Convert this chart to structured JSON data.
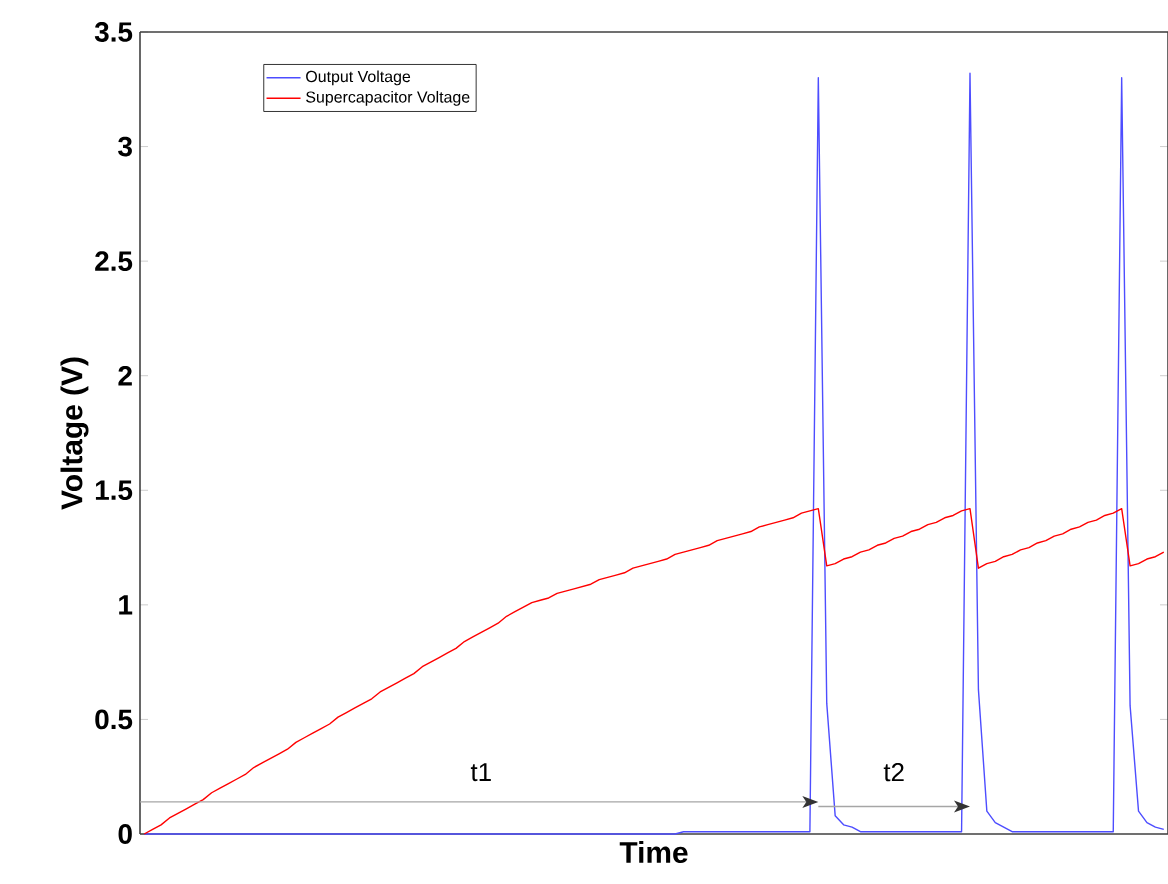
{
  "chart_data": {
    "type": "line",
    "xlabel": "Time",
    "ylabel": "Voltage (V)",
    "categories": [
      null,
      null,
      null,
      null,
      null,
      null,
      null,
      null,
      null,
      null,
      null,
      null,
      null,
      null,
      null,
      null,
      null,
      null,
      null,
      null,
      null,
      null,
      null,
      null,
      null,
      null,
      null,
      null,
      null,
      null,
      null,
      null,
      null,
      null,
      null,
      null,
      null,
      null,
      null,
      null,
      null,
      null,
      null,
      null,
      null,
      null,
      null,
      null,
      null,
      null,
      null,
      null,
      null,
      null,
      null,
      null,
      null,
      null,
      null,
      null,
      null,
      null,
      null,
      null,
      null,
      null,
      null,
      null,
      null,
      null,
      null,
      null,
      null,
      null,
      null,
      null,
      null,
      null,
      null,
      null,
      null,
      null,
      null,
      null,
      null,
      null,
      null,
      null,
      null,
      null,
      null,
      null,
      null,
      null,
      null,
      null,
      null,
      null,
      null,
      null,
      null,
      null,
      null,
      null,
      null,
      null,
      null,
      null,
      null,
      null,
      null,
      null,
      null,
      null,
      null,
      null,
      null,
      null,
      null,
      null,
      null,
      null
    ],
    "series": [
      {
        "name": "Output Voltage",
        "color": "#4d4dff",
        "values": [
          0,
          0,
          0,
          0,
          0,
          0,
          0,
          0,
          0,
          0,
          0,
          0,
          0,
          0,
          0,
          0,
          0,
          0,
          0,
          0,
          0,
          0,
          0,
          0,
          0,
          0,
          0,
          0,
          0,
          0,
          0,
          0,
          0,
          0,
          0,
          0,
          0,
          0,
          0,
          0,
          0,
          0,
          0,
          0,
          0,
          0,
          0,
          0,
          0,
          0,
          0,
          0,
          0,
          0,
          0,
          0,
          0,
          0,
          0,
          0,
          0,
          0,
          0,
          0,
          0.01,
          0.01,
          0.01,
          0.01,
          0.01,
          0.01,
          0.01,
          0.01,
          0.01,
          0.01,
          0.01,
          0.01,
          0.01,
          0.01,
          0.01,
          0.01,
          3.3,
          0.57,
          0.08,
          0.04,
          0.03,
          0.01,
          0.01,
          0.01,
          0.01,
          0.01,
          0.01,
          0.01,
          0.01,
          0.01,
          0.01,
          0.01,
          0.01,
          0.01,
          3.32,
          0.63,
          0.1,
          0.05,
          0.03,
          0.01,
          0.01,
          0.01,
          0.01,
          0.01,
          0.01,
          0.01,
          0.01,
          0.01,
          0.01,
          0.01,
          0.01,
          0.01,
          3.3,
          0.56,
          0.1,
          0.05,
          0.03,
          0.02
        ]
      },
      {
        "name": "Supercapacitor Voltage",
        "color": "#ff0000",
        "values": [
          0,
          0.02,
          0.04,
          0.07,
          0.09,
          0.11,
          0.13,
          0.15,
          0.18,
          0.2,
          0.22,
          0.24,
          0.26,
          0.29,
          0.31,
          0.33,
          0.35,
          0.37,
          0.4,
          0.42,
          0.44,
          0.46,
          0.48,
          0.51,
          0.53,
          0.55,
          0.57,
          0.59,
          0.62,
          0.64,
          0.66,
          0.68,
          0.7,
          0.73,
          0.75,
          0.77,
          0.79,
          0.81,
          0.84,
          0.86,
          0.88,
          0.9,
          0.92,
          0.95,
          0.97,
          0.99,
          1.01,
          1.02,
          1.03,
          1.05,
          1.06,
          1.07,
          1.08,
          1.09,
          1.11,
          1.12,
          1.13,
          1.14,
          1.16,
          1.17,
          1.18,
          1.19,
          1.2,
          1.22,
          1.23,
          1.24,
          1.25,
          1.26,
          1.28,
          1.29,
          1.3,
          1.31,
          1.32,
          1.34,
          1.35,
          1.36,
          1.37,
          1.38,
          1.4,
          1.41,
          1.42,
          1.17,
          1.18,
          1.2,
          1.21,
          1.23,
          1.24,
          1.26,
          1.27,
          1.29,
          1.3,
          1.32,
          1.33,
          1.35,
          1.36,
          1.38,
          1.39,
          1.41,
          1.42,
          1.16,
          1.18,
          1.19,
          1.21,
          1.22,
          1.24,
          1.25,
          1.27,
          1.28,
          1.3,
          1.31,
          1.33,
          1.34,
          1.36,
          1.37,
          1.39,
          1.4,
          1.42,
          1.17,
          1.18,
          1.2,
          1.21,
          1.23
        ]
      }
    ],
    "ylim": [
      0,
      3.5
    ],
    "yticks": [
      0,
      0.5,
      1,
      1.5,
      2,
      2.5,
      3,
      3.5
    ],
    "legend": "top left",
    "annotations": [
      "t1",
      "t2"
    ]
  }
}
